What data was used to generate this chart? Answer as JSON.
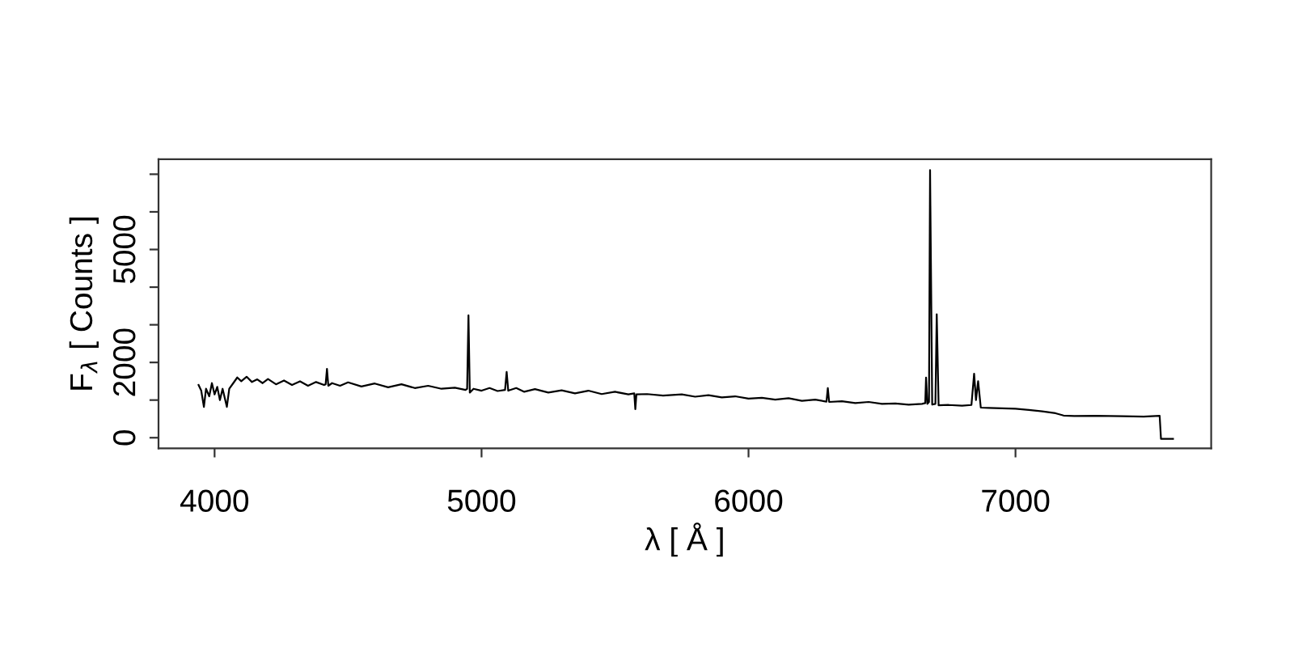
{
  "chart_data": {
    "type": "line",
    "xlabel": "λ [ Å ]",
    "ylabel": "F$_{λ}$ [ Counts ]",
    "x": [
      3940,
      3950,
      3960,
      3968,
      3980,
      3990,
      4000,
      4010,
      4020,
      4030,
      4046,
      4055,
      4070,
      4085,
      4100,
      4120,
      4140,
      4160,
      4180,
      4200,
      4230,
      4260,
      4290,
      4320,
      4350,
      4380,
      4410,
      4416,
      4421,
      4426,
      4440,
      4470,
      4500,
      4550,
      4600,
      4650,
      4700,
      4750,
      4800,
      4850,
      4900,
      4940,
      4946,
      4951,
      4956,
      4970,
      5000,
      5030,
      5060,
      5088,
      5094,
      5100,
      5130,
      5160,
      5200,
      5250,
      5300,
      5350,
      5400,
      5450,
      5500,
      5550,
      5572,
      5576,
      5580,
      5620,
      5680,
      5750,
      5800,
      5850,
      5900,
      5950,
      6000,
      6050,
      6100,
      6150,
      6200,
      6250,
      6292,
      6297,
      6302,
      6350,
      6400,
      6450,
      6500,
      6550,
      6600,
      6650,
      6662,
      6665,
      6670,
      6676,
      6680,
      6688,
      6700,
      6705,
      6712,
      6750,
      6800,
      6835,
      6845,
      6852,
      6860,
      6870,
      6900,
      6950,
      7000,
      7050,
      7100,
      7150,
      7180,
      7220,
      7300,
      7400,
      7480,
      7540,
      7545,
      7590
    ],
    "series": [
      {
        "color": "#000000",
        "values": [
          1400,
          1250,
          820,
          1300,
          1100,
          1450,
          1150,
          1350,
          1000,
          1300,
          820,
          1300,
          1450,
          1600,
          1500,
          1620,
          1480,
          1550,
          1450,
          1560,
          1420,
          1520,
          1400,
          1500,
          1380,
          1480,
          1400,
          1420,
          1830,
          1380,
          1450,
          1380,
          1470,
          1360,
          1440,
          1340,
          1420,
          1320,
          1380,
          1300,
          1330,
          1270,
          1300,
          3250,
          1200,
          1300,
          1250,
          1320,
          1240,
          1270,
          1750,
          1250,
          1320,
          1220,
          1290,
          1200,
          1260,
          1180,
          1250,
          1160,
          1220,
          1150,
          1180,
          760,
          1150,
          1160,
          1120,
          1150,
          1090,
          1130,
          1070,
          1100,
          1040,
          1060,
          1010,
          1050,
          980,
          1010,
          960,
          1320,
          950,
          970,
          920,
          950,
          900,
          910,
          880,
          900,
          920,
          1600,
          900,
          950,
          7110,
          880,
          900,
          3280,
          860,
          870,
          850,
          870,
          1700,
          1000,
          1500,
          800,
          790,
          780,
          770,
          740,
          700,
          650,
          590,
          575,
          580,
          570,
          560,
          580,
          -30,
          -30
        ]
      }
    ],
    "xlim": [
      3790,
      7733
    ],
    "xticks": [
      4000,
      5000,
      6000,
      7000
    ],
    "ylim": [
      -283,
      7400
    ],
    "yticks": [
      0,
      {
        "value": 1000,
        "label": null
      },
      2000,
      {
        "value": 3000,
        "label": null
      },
      {
        "value": 4000,
        "label": null
      },
      5000,
      {
        "value": 6000,
        "label": null
      },
      {
        "value": 7000,
        "label": null
      }
    ],
    "grid": false,
    "line_style": "solid",
    "marker": "none"
  }
}
